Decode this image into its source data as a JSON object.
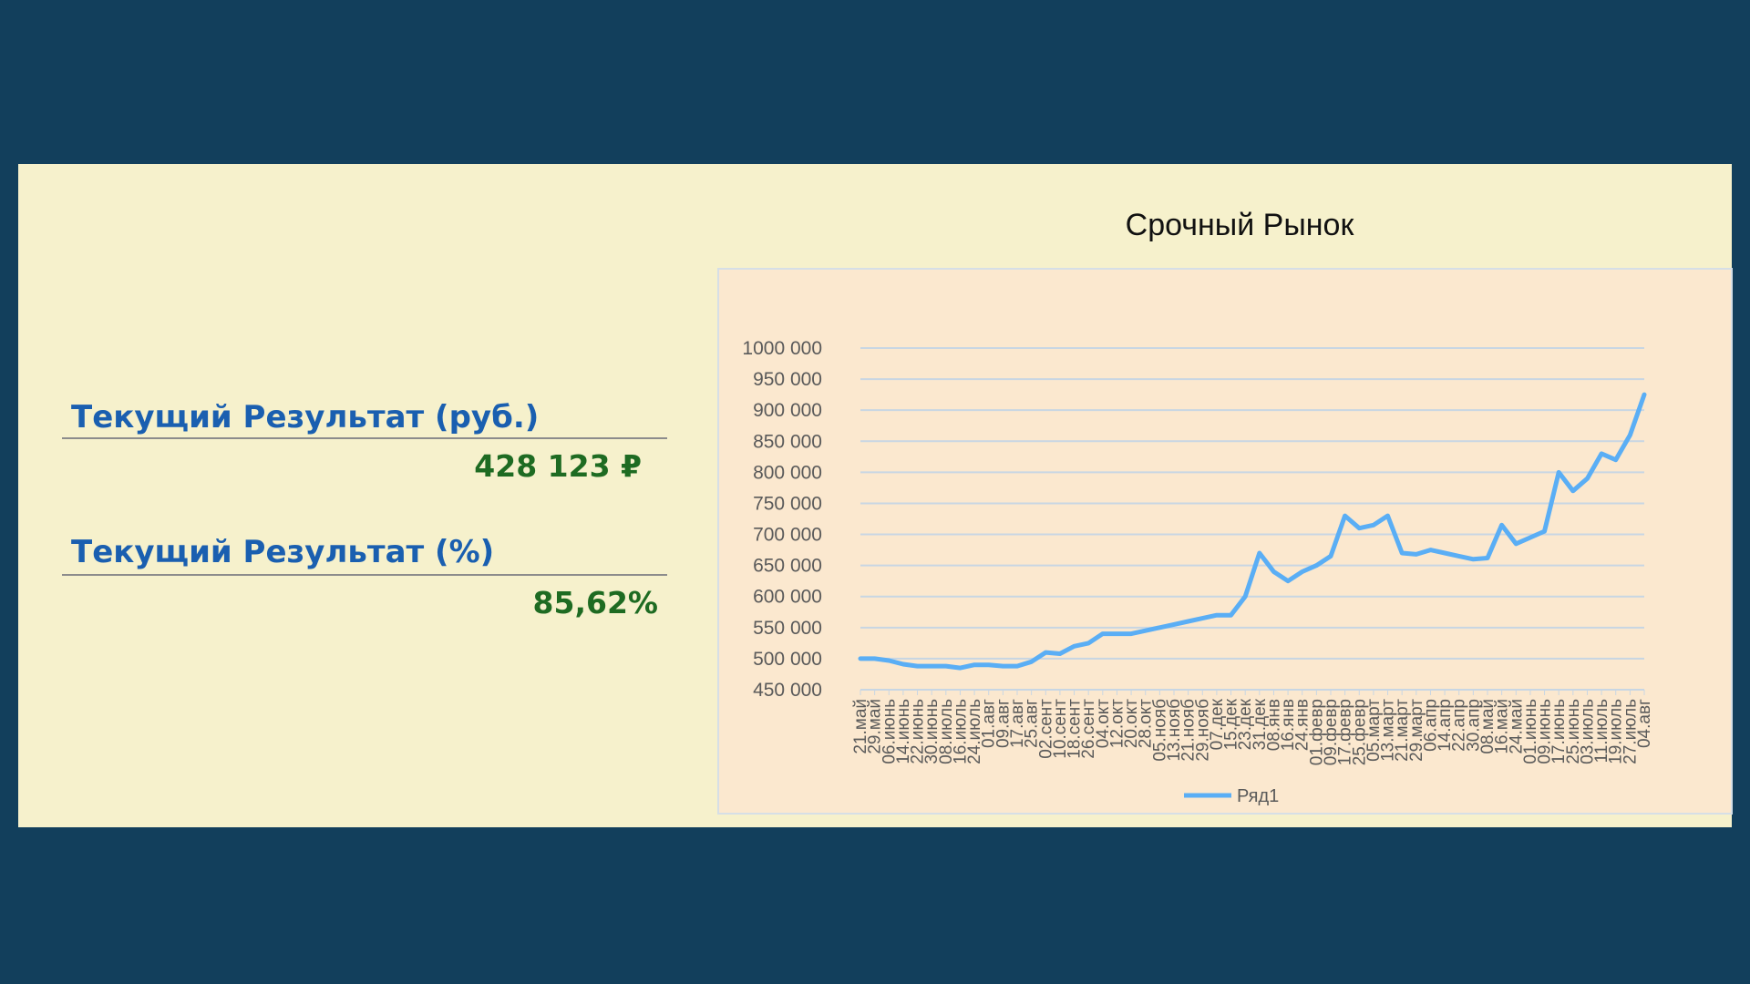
{
  "metrics": {
    "rub_label": "Текущий Результат (руб.)",
    "rub_value": "428 123 ₽",
    "pct_label": "Текущий Результат (%)",
    "pct_value": "85,62%"
  },
  "chart_data": {
    "type": "line",
    "title": "Срочный Рынок",
    "xlabel": "",
    "ylabel": "",
    "ylim": [
      450000,
      1000000
    ],
    "y_ticks": [
      1000000,
      950000,
      900000,
      850000,
      800000,
      750000,
      700000,
      650000,
      600000,
      550000,
      500000,
      450000
    ],
    "y_tick_labels": [
      "1000 000",
      "950 000",
      "900 000",
      "850 000",
      "800 000",
      "750 000",
      "700 000",
      "650 000",
      "600 000",
      "550 000",
      "500 000",
      "450 000"
    ],
    "grid": true,
    "legend": {
      "position": "bottom",
      "entries": [
        "Ряд1"
      ]
    },
    "x_tick_labels": [
      "21.май",
      "29.май",
      "06.июнь",
      "14.июнь",
      "22.июнь",
      "30.июнь",
      "08.июль",
      "16.июль",
      "24.июль",
      "01.авг",
      "09.авг",
      "17.авг",
      "25.авг",
      "02.сент",
      "10.сент",
      "18.сент",
      "26.сент",
      "04.окт",
      "12.окт",
      "20.окт",
      "28.окт",
      "05.нояб",
      "13.нояб",
      "21.нояб",
      "29.нояб",
      "07.дек",
      "15.дек",
      "23.дек",
      "31.дек",
      "08.янв",
      "16.янв",
      "24.янв",
      "01.февр",
      "09.февр",
      "17.февр",
      "25.февр",
      "05.март",
      "13.март",
      "21.март",
      "29.март",
      "06.апр",
      "14.апр",
      "22.апр",
      "30.апр",
      "08.май",
      "16.май",
      "24.май",
      "01.июнь",
      "09.июнь",
      "17.июнь",
      "25.июнь",
      "03.июль",
      "11.июль",
      "19.июль",
      "27.июль",
      "04.авг"
    ],
    "series": [
      {
        "name": "Ряд1",
        "color": "#5aaef5",
        "x": [
          "21.май",
          "29.май",
          "06.июнь",
          "14.июнь",
          "22.июнь",
          "30.июнь",
          "08.июль",
          "16.июль",
          "24.июль",
          "01.авг",
          "09.авг",
          "17.авг",
          "25.авг",
          "02.сент",
          "10.сент",
          "18.сент",
          "26.сент",
          "04.окт",
          "12.окт",
          "20.окт",
          "28.окт",
          "05.нояб",
          "13.нояб",
          "21.нояб",
          "29.нояб",
          "07.дек",
          "15.дек",
          "23.дек",
          "31.дек",
          "08.янв",
          "16.янв",
          "24.янв",
          "01.февр",
          "09.февр",
          "17.февр",
          "25.февр",
          "05.март",
          "13.март",
          "21.март",
          "29.март",
          "06.апр",
          "14.апр",
          "22.апр",
          "30.апр",
          "08.май",
          "16.май",
          "24.май",
          "01.июнь",
          "09.июнь",
          "17.июнь",
          "25.июнь",
          "03.июль",
          "11.июль",
          "19.июль",
          "27.июль",
          "04.авг"
        ],
        "values": [
          500000,
          500000,
          497000,
          491000,
          488000,
          488000,
          488000,
          485000,
          490000,
          490000,
          488000,
          488000,
          495000,
          510000,
          508000,
          520000,
          525000,
          540000,
          540000,
          540000,
          545000,
          550000,
          555000,
          560000,
          565000,
          570000,
          570000,
          600000,
          670000,
          640000,
          625000,
          640000,
          650000,
          665000,
          730000,
          710000,
          715000,
          730000,
          670000,
          668000,
          675000,
          670000,
          665000,
          660000,
          662000,
          715000,
          685000,
          695000,
          705000,
          800000,
          770000,
          790000,
          830000,
          820000,
          860000,
          925000
        ]
      }
    ]
  }
}
